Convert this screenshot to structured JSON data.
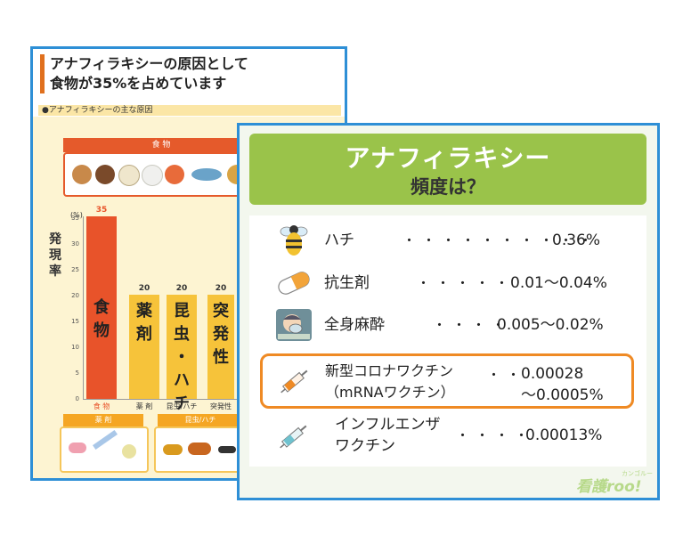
{
  "back_panel": {
    "title_line1": "アナフィラキシーの原因として",
    "title_line2": "食物が35%を占めています",
    "subtitle": "●アナフィラキシーの主な原因",
    "food_tag": "食 物",
    "y_label": "発現率",
    "y_unit": "(%)",
    "y_ticks": [
      "35",
      "30",
      "25",
      "20",
      "15",
      "10",
      "5",
      "0"
    ],
    "drug_tag": "薬 剤",
    "insect_tag": "昆虫/ハチ"
  },
  "chart_data": {
    "type": "bar",
    "categories": [
      "食 物",
      "薬 剤",
      "昆虫/ハチ",
      "突発性"
    ],
    "bar_labels": [
      "食物",
      "薬剤",
      "昆虫・ハチ",
      "突発性"
    ],
    "values": [
      35,
      20,
      20,
      20
    ],
    "ylabel": "発現率",
    "ylim": [
      0,
      35
    ],
    "colors": [
      "#e8532a",
      "#f6c33a",
      "#f6c33a",
      "#f6c33a"
    ]
  },
  "front_panel": {
    "title": "アナフィラキシー",
    "subtitle": "頻度は？",
    "rows": [
      {
        "name": "ハチ",
        "dots": "・・・・・・・・・・",
        "value": "0.36%",
        "icon": "bee-icon"
      },
      {
        "name": "抗生剤",
        "dots": "・・・・・",
        "value": "0.01〜0.04%",
        "icon": "capsule-icon"
      },
      {
        "name": "全身麻酔",
        "dots": "・・・・",
        "value": "0.005〜0.02%",
        "icon": "anesthesia-patient-icon"
      },
      {
        "name_line1": "新型コロナワクチン",
        "name_line2": "（mRNAワクチン）",
        "dots": "・・",
        "value_line1": "0.00028",
        "value_line2": "〜0.0005%",
        "icon": "syringe-icon",
        "highlight_color": "#ef8a24"
      },
      {
        "name_line1": "インフルエンザ",
        "name_line2": "ワクチン",
        "dots": "・・・・",
        "value": "0.00013%",
        "icon": "syringe-icon"
      }
    ],
    "logo": "看護roo!",
    "logo_small": "カンゴルー",
    "accent": "#9ac34a",
    "border": "#2e8fd6"
  }
}
